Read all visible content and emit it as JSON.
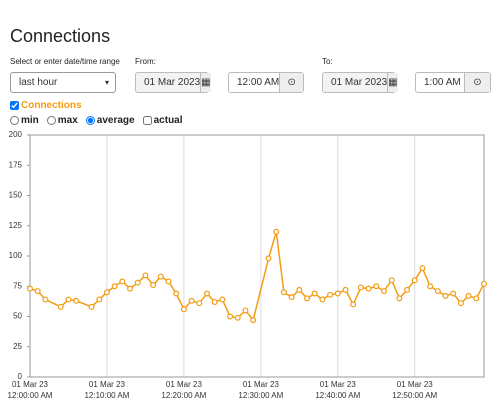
{
  "header": {
    "title": "Connections"
  },
  "range": {
    "label": "Select or enter date/time range",
    "selected": "last hour"
  },
  "from": {
    "label": "From:",
    "date": "01 Mar 2023",
    "time": "12:00 AM"
  },
  "to": {
    "label": "To:",
    "date": "01 Mar 2023",
    "time": "1:00 AM"
  },
  "series_toggle": {
    "label": "Connections",
    "checked": true
  },
  "modes": {
    "options": [
      "min",
      "max",
      "average",
      "actual"
    ],
    "selected": "average"
  },
  "chart_data": {
    "type": "line",
    "x": [
      "2023-03-01T00:00",
      "2023-03-01T00:01",
      "2023-03-01T00:02",
      "2023-03-01T00:04",
      "2023-03-01T00:05",
      "2023-03-01T00:06",
      "2023-03-01T00:08",
      "2023-03-01T00:09",
      "2023-03-01T00:10",
      "2023-03-01T00:11",
      "2023-03-01T00:12",
      "2023-03-01T00:13",
      "2023-03-01T00:14",
      "2023-03-01T00:15",
      "2023-03-01T00:16",
      "2023-03-01T00:17",
      "2023-03-01T00:18",
      "2023-03-01T00:19",
      "2023-03-01T00:20",
      "2023-03-01T00:21",
      "2023-03-01T00:22",
      "2023-03-01T00:23",
      "2023-03-01T00:24",
      "2023-03-01T00:25",
      "2023-03-01T00:26",
      "2023-03-01T00:27",
      "2023-03-01T00:28",
      "2023-03-01T00:29",
      "2023-03-01T00:31",
      "2023-03-01T00:32",
      "2023-03-01T00:33",
      "2023-03-01T00:34",
      "2023-03-01T00:35",
      "2023-03-01T00:36",
      "2023-03-01T00:37",
      "2023-03-01T00:38",
      "2023-03-01T00:39",
      "2023-03-01T00:40",
      "2023-03-01T00:41",
      "2023-03-01T00:42",
      "2023-03-01T00:43",
      "2023-03-01T00:44",
      "2023-03-01T00:45",
      "2023-03-01T00:46",
      "2023-03-01T00:47",
      "2023-03-01T00:48",
      "2023-03-01T00:49",
      "2023-03-01T00:50",
      "2023-03-01T00:51",
      "2023-03-01T00:52",
      "2023-03-01T00:53",
      "2023-03-01T00:54",
      "2023-03-01T00:55",
      "2023-03-01T00:56",
      "2023-03-01T00:57",
      "2023-03-01T00:58",
      "2023-03-01T00:59"
    ],
    "series": [
      {
        "name": "Connections",
        "color": "#f39c12",
        "values": [
          73,
          71,
          64,
          58,
          64,
          63,
          58,
          64,
          70,
          75,
          79,
          73,
          78,
          84,
          76,
          83,
          79,
          69,
          56,
          63,
          61,
          69,
          62,
          64,
          50,
          49,
          55,
          47,
          98,
          120,
          70,
          66,
          72,
          65,
          69,
          64,
          68,
          69,
          72,
          60,
          74,
          73,
          75,
          71,
          80,
          65,
          72,
          80,
          90,
          75,
          71,
          67,
          69,
          61,
          67,
          65,
          77
        ]
      }
    ],
    "xlim": [
      "2023-03-01T00:00",
      "2023-03-01T00:59"
    ],
    "xticks": [
      {
        "value": "2023-03-01T00:00",
        "label": [
          "01 Mar 23",
          "12:00:00 AM"
        ]
      },
      {
        "value": "2023-03-01T00:10",
        "label": [
          "01 Mar 23",
          "12:10:00 AM"
        ]
      },
      {
        "value": "2023-03-01T00:20",
        "label": [
          "01 Mar 23",
          "12:20:00 AM"
        ]
      },
      {
        "value": "2023-03-01T00:30",
        "label": [
          "01 Mar 23",
          "12:30:00 AM"
        ]
      },
      {
        "value": "2023-03-01T00:40",
        "label": [
          "01 Mar 23",
          "12:40:00 AM"
        ]
      },
      {
        "value": "2023-03-01T00:50",
        "label": [
          "01 Mar 23",
          "12:50:00 AM"
        ]
      }
    ],
    "ylim": [
      0,
      200
    ],
    "yticks": [
      0,
      25,
      50,
      75,
      100,
      125,
      150,
      175,
      200
    ],
    "grid": true
  }
}
